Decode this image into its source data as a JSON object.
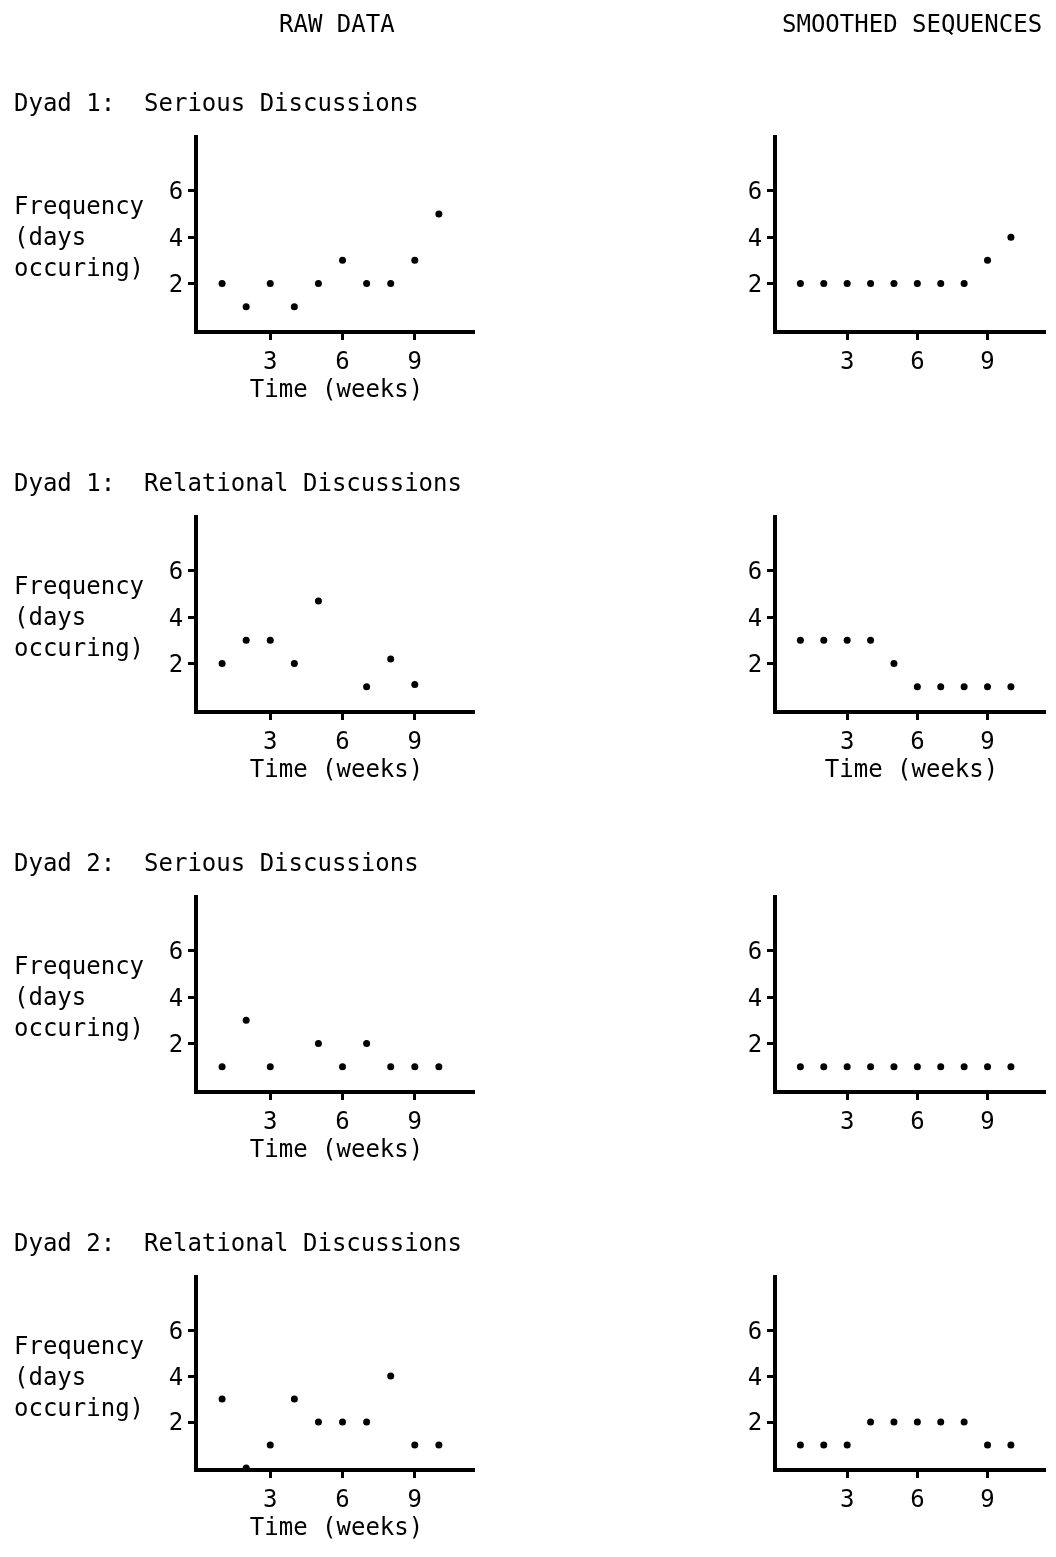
{
  "chart_data": [
    {
      "type": "scatter",
      "title": "Dyad 1:  Serious Discussions",
      "annotations": [
        "RAW DATA"
      ],
      "xlabel": "Time (weeks)",
      "ylabel": "Frequency\n(days\noccuring)",
      "x": [
        1,
        2,
        3,
        4,
        5,
        6,
        7,
        8,
        9,
        10
      ],
      "series": [
        {
          "color": "#000000",
          "values": [
            2,
            1,
            2,
            1,
            2,
            3,
            2,
            2,
            3,
            5
          ]
        }
      ],
      "xlim": [
        0,
        11.5
      ],
      "ylim": [
        0,
        8.4
      ],
      "xticks": [
        3,
        6,
        9
      ],
      "yticks": [
        2,
        4,
        6
      ],
      "marker": "circle"
    },
    {
      "type": "scatter",
      "annotations": [
        "SMOOTHED SEQUENCES"
      ],
      "x": [
        1,
        2,
        3,
        4,
        5,
        6,
        7,
        8,
        9,
        10
      ],
      "series": [
        {
          "color": "#000000",
          "values": [
            2,
            2,
            2,
            2,
            2,
            2,
            2,
            2,
            3,
            4
          ]
        }
      ],
      "xlim": [
        0,
        11.5
      ],
      "ylim": [
        0,
        8.4
      ],
      "xticks": [
        3,
        6,
        9
      ],
      "yticks": [
        2,
        4,
        6
      ],
      "marker": "circle"
    },
    {
      "type": "scatter",
      "title": "Dyad 1:  Relational Discussions",
      "xlabel": "Time (weeks)",
      "ylabel": "Frequency\n(days\noccuring)",
      "x": [
        1,
        2,
        3,
        4,
        5,
        7,
        8,
        9
      ],
      "series": [
        {
          "color": "#000000",
          "values": [
            2,
            3,
            3,
            2,
            4.7,
            1,
            2.2,
            1.1
          ]
        }
      ],
      "xlim": [
        0,
        11.5
      ],
      "ylim": [
        0,
        8.4
      ],
      "xticks": [
        3,
        6,
        9
      ],
      "yticks": [
        2,
        4,
        6
      ],
      "marker": "circle"
    },
    {
      "type": "scatter",
      "xlabel": "Time (weeks)",
      "x": [
        1,
        2,
        3,
        4,
        5,
        6,
        7,
        8,
        9,
        10
      ],
      "series": [
        {
          "color": "#000000",
          "values": [
            3,
            3,
            3,
            3,
            2,
            1,
            1,
            1,
            1,
            1
          ]
        }
      ],
      "xlim": [
        0,
        11.5
      ],
      "ylim": [
        0,
        8.4
      ],
      "xticks": [
        3,
        6,
        9
      ],
      "yticks": [
        2,
        4,
        6
      ],
      "marker": "circle"
    },
    {
      "type": "scatter",
      "title": "Dyad 2:  Serious Discussions",
      "xlabel": "Time (weeks)",
      "ylabel": "Frequency\n(days\noccuring)",
      "x": [
        1,
        2,
        3,
        5,
        6,
        7,
        8,
        9,
        10
      ],
      "series": [
        {
          "color": "#000000",
          "values": [
            1,
            3,
            1,
            2,
            1,
            2,
            1,
            1,
            1
          ]
        }
      ],
      "xlim": [
        0,
        11.5
      ],
      "ylim": [
        0,
        8.4
      ],
      "xticks": [
        3,
        6,
        9
      ],
      "yticks": [
        2,
        4,
        6
      ],
      "marker": "circle"
    },
    {
      "type": "scatter",
      "x": [
        1,
        2,
        3,
        4,
        5,
        6,
        7,
        8,
        9,
        10
      ],
      "series": [
        {
          "color": "#000000",
          "values": [
            1,
            1,
            1,
            1,
            1,
            1,
            1,
            1,
            1,
            1
          ]
        }
      ],
      "xlim": [
        0,
        11.5
      ],
      "ylim": [
        0,
        8.4
      ],
      "xticks": [
        3,
        6,
        9
      ],
      "yticks": [
        2,
        4,
        6
      ],
      "marker": "circle"
    },
    {
      "type": "scatter",
      "title": "Dyad 2:  Relational Discussions",
      "xlabel": "Time (weeks)",
      "ylabel": "Frequency\n(days\noccuring)",
      "x": [
        1,
        2,
        3,
        4,
        5,
        6,
        7,
        8,
        9,
        10
      ],
      "series": [
        {
          "color": "#000000",
          "values": [
            3,
            0,
            1,
            3,
            2,
            2,
            2,
            4,
            1,
            1
          ]
        }
      ],
      "xlim": [
        0,
        11.5
      ],
      "ylim": [
        0,
        8.4
      ],
      "xticks": [
        3,
        6,
        9
      ],
      "yticks": [
        2,
        4,
        6
      ],
      "marker": "circle"
    },
    {
      "type": "scatter",
      "x": [
        1,
        2,
        3,
        4,
        5,
        6,
        7,
        8,
        9,
        10
      ],
      "series": [
        {
          "color": "#000000",
          "values": [
            1,
            1,
            1,
            2,
            2,
            2,
            2,
            2,
            1,
            1
          ]
        }
      ],
      "xlim": [
        0,
        11.5
      ],
      "ylim": [
        0,
        8.4
      ],
      "xticks": [
        3,
        6,
        9
      ],
      "yticks": [
        2,
        4,
        6
      ],
      "marker": "circle"
    }
  ]
}
